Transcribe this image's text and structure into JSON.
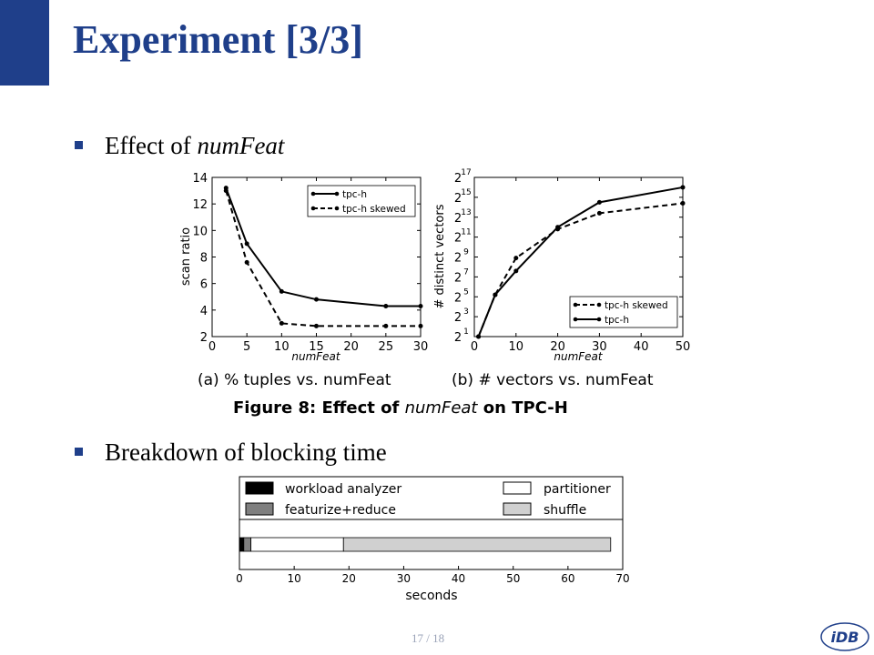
{
  "slide": {
    "title": "Experiment [3/3]",
    "bullets": [
      {
        "text": "Effect of ",
        "italic": "numFeat"
      },
      {
        "text": "Breakdown of blocking time"
      }
    ],
    "footer": "17 / 18",
    "logo_text": "iDB"
  },
  "colors": {
    "accent": "#1f3f8a",
    "footer": "#9aa3b8"
  },
  "figure8": {
    "caption": "Figure 8: Effect of numFeat on TPC-H",
    "caption_bold1": "Figure 8: Effect of ",
    "caption_italic": "numFeat",
    "caption_bold2": " on TPC-H",
    "sub_a": "(a) % tuples vs. numFeat",
    "sub_b": "(b) # vectors vs. numFeat"
  },
  "chart_data": [
    {
      "type": "line",
      "xlabel": "numFeat",
      "ylabel": "scan ratio",
      "xlim": [
        0,
        30
      ],
      "ylim": [
        2,
        14
      ],
      "xticks": [
        "0",
        "5",
        "10",
        "15",
        "20",
        "25",
        "30"
      ],
      "yticks": [
        "2",
        "4",
        "6",
        "8",
        "10",
        "12",
        "14"
      ],
      "legend_position": "top-right",
      "x": [
        2,
        5,
        10,
        15,
        25,
        30
      ],
      "series": [
        {
          "name": "tpc-h",
          "style": "solid",
          "values": [
            13.2,
            9.0,
            5.4,
            4.8,
            4.3,
            4.3
          ]
        },
        {
          "name": "tpc-h skewed",
          "style": "dashed",
          "values": [
            13.0,
            7.6,
            3.0,
            2.8,
            2.8,
            2.8
          ]
        }
      ]
    },
    {
      "type": "line",
      "xlabel": "numFeat",
      "ylabel": "# distinct vectors",
      "xlim": [
        0,
        50
      ],
      "ylim": [
        1,
        17
      ],
      "yscale": "log2",
      "xticks": [
        "0",
        "10",
        "20",
        "30",
        "40",
        "50"
      ],
      "yticks_exp": [
        "1",
        "3",
        "5",
        "7",
        "9",
        "11",
        "13",
        "15",
        "17"
      ],
      "legend_position": "bottom-right",
      "x": [
        1,
        5,
        10,
        20,
        30,
        50
      ],
      "series": [
        {
          "name": "tpc-h skewed",
          "style": "dashed",
          "values": [
            1,
            5.2,
            8.9,
            11.8,
            13.4,
            14.4
          ]
        },
        {
          "name": "tpc-h",
          "style": "solid",
          "values": [
            1,
            5.2,
            7.6,
            12.0,
            14.5,
            16.0
          ]
        }
      ]
    },
    {
      "type": "bar",
      "orientation": "horizontal-stacked",
      "xlabel": "seconds",
      "xlim": [
        0,
        70
      ],
      "xticks": [
        "0",
        "10",
        "20",
        "30",
        "40",
        "50",
        "60",
        "70"
      ],
      "legend_position": "top",
      "segments": [
        {
          "name": "workload analyzer",
          "value": 0.8,
          "color": "#000000"
        },
        {
          "name": "featurize+reduce",
          "value": 1.3,
          "color": "#7f7f7f"
        },
        {
          "name": "partitioner",
          "value": 16.9,
          "color": "#ffffff"
        },
        {
          "name": "shuffle",
          "value": 48.8,
          "color": "#d0d0d0"
        }
      ]
    }
  ]
}
